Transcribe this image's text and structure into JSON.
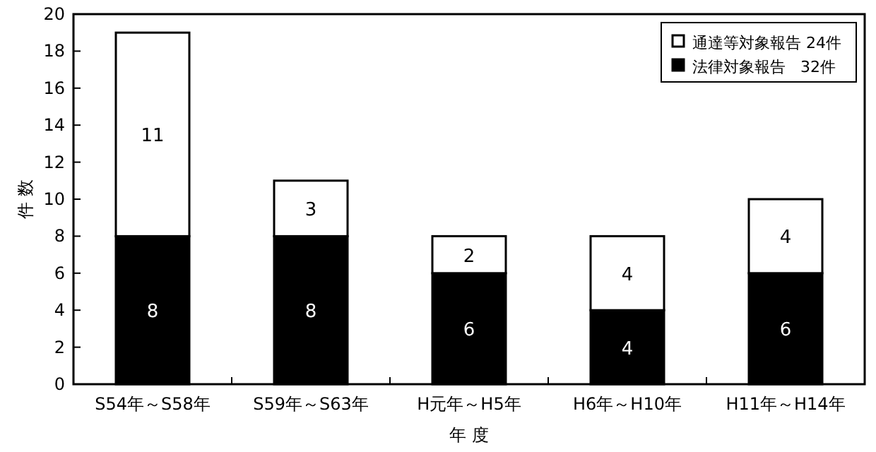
{
  "chart_data": {
    "type": "bar",
    "stacked": true,
    "xlabel": "年 度",
    "ylabel": "件 数",
    "categories": [
      "S54年～S58年",
      "S59年～S63年",
      "H元年～H5年",
      "H6年～H10年",
      "H11年～H14年"
    ],
    "series": [
      {
        "name": "法律対象報告   32件",
        "color": "#000000",
        "values": [
          8,
          8,
          6,
          4,
          6
        ]
      },
      {
        "name": "通達等対象報告 24件",
        "color": "#ffffff",
        "values": [
          11,
          3,
          2,
          4,
          4
        ]
      }
    ],
    "ylim": [
      0,
      20
    ],
    "yticks": [
      0,
      2,
      4,
      6,
      8,
      10,
      12,
      14,
      16,
      18,
      20
    ],
    "data_labels": true,
    "legend": "top right",
    "grid": false
  }
}
